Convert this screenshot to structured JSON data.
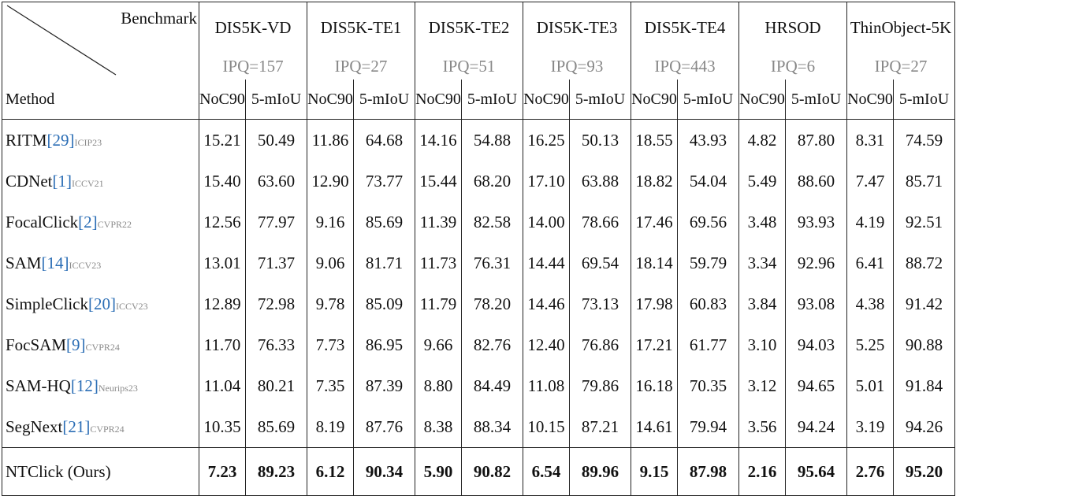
{
  "header": {
    "benchmark_label": "Benchmark",
    "method_label": "Method",
    "datasets": [
      {
        "name": "DIS5K-VD",
        "ipq": "IPQ=157"
      },
      {
        "name": "DIS5K-TE1",
        "ipq": "IPQ=27"
      },
      {
        "name": "DIS5K-TE2",
        "ipq": "IPQ=51"
      },
      {
        "name": "DIS5K-TE3",
        "ipq": "IPQ=93"
      },
      {
        "name": "DIS5K-TE4",
        "ipq": "IPQ=443"
      },
      {
        "name": "HRSOD",
        "ipq": "IPQ=6"
      },
      {
        "name": "ThinObject-5K",
        "ipq": "IPQ=27"
      }
    ],
    "metric_noc": "NoC90",
    "metric_miou": "5-mIoU"
  },
  "rows": [
    {
      "name": "RITM",
      "ref": "[29]",
      "venue": "ICIP23",
      "values": [
        "15.21",
        "50.49",
        "11.86",
        "64.68",
        "14.16",
        "54.88",
        "16.25",
        "50.13",
        "18.55",
        "43.93",
        "4.82",
        "87.80",
        "8.31",
        "74.59"
      ]
    },
    {
      "name": "CDNet",
      "ref": "[1]",
      "venue": "ICCV21",
      "values": [
        "15.40",
        "63.60",
        "12.90",
        "73.77",
        "15.44",
        "68.20",
        "17.10",
        "63.88",
        "18.82",
        "54.04",
        "5.49",
        "88.60",
        "7.47",
        "85.71"
      ]
    },
    {
      "name": "FocalClick",
      "ref": "[2]",
      "venue": "CVPR22",
      "values": [
        "12.56",
        "77.97",
        "9.16",
        "85.69",
        "11.39",
        "82.58",
        "14.00",
        "78.66",
        "17.46",
        "69.56",
        "3.48",
        "93.93",
        "4.19",
        "92.51"
      ]
    },
    {
      "name": "SAM",
      "ref": "[14]",
      "venue": "ICCV23",
      "values": [
        "13.01",
        "71.37",
        "9.06",
        "81.71",
        "11.73",
        "76.31",
        "14.44",
        "69.54",
        "18.14",
        "59.79",
        "3.34",
        "92.96",
        "6.41",
        "88.72"
      ]
    },
    {
      "name": "SimpleClick",
      "ref": "[20]",
      "venue": "ICCV23",
      "values": [
        "12.89",
        "72.98",
        "9.78",
        "85.09",
        "11.79",
        "78.20",
        "14.46",
        "73.13",
        "17.98",
        "60.83",
        "3.84",
        "93.08",
        "4.38",
        "91.42"
      ]
    },
    {
      "name": "FocSAM",
      "ref": "[9]",
      "venue": "CVPR24",
      "values": [
        "11.70",
        "76.33",
        "7.73",
        "86.95",
        "9.66",
        "82.76",
        "12.40",
        "76.86",
        "17.21",
        "61.77",
        "3.10",
        "94.03",
        "5.25",
        "90.88"
      ]
    },
    {
      "name": "SAM-HQ",
      "ref": "[12]",
      "venue": "Neurips23",
      "values": [
        "11.04",
        "80.21",
        "7.35",
        "87.39",
        "8.80",
        "84.49",
        "11.08",
        "79.86",
        "16.18",
        "70.35",
        "3.12",
        "94.65",
        "5.01",
        "91.84"
      ]
    },
    {
      "name": "SegNext",
      "ref": "[21]",
      "venue": "CVPR24",
      "values": [
        "10.35",
        "85.69",
        "8.19",
        "87.76",
        "8.38",
        "88.34",
        "10.15",
        "87.21",
        "14.61",
        "79.94",
        "3.56",
        "94.24",
        "3.19",
        "94.26"
      ]
    }
  ],
  "ours": {
    "name": "NTClick (Ours)",
    "values": [
      "7.23",
      "89.23",
      "6.12",
      "90.34",
      "5.90",
      "90.82",
      "6.54",
      "89.96",
      "9.15",
      "87.98",
      "2.16",
      "95.64",
      "2.76",
      "95.20"
    ]
  }
}
